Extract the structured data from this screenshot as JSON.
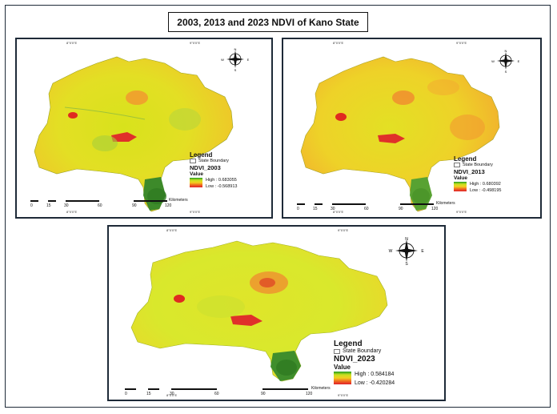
{
  "title": "2003, 2013 and 2023 NDVI of Kano State",
  "coord_top": "8°0'0\"E",
  "coord_top_right": "9°0'0\"E",
  "panels": [
    {
      "legend_title": "Legend",
      "boundary_label": "State Boundary",
      "layer_name": "NDVI_2003",
      "value_label": "Value",
      "high_label": "High : 0.683055",
      "low_label": "Low : -0.568913",
      "scale_unit": "Kilometers",
      "scale_ticks": [
        "0",
        "15",
        "30",
        "60",
        "90",
        "120"
      ]
    },
    {
      "legend_title": "Legend",
      "boundary_label": "State Boundary",
      "layer_name": "NDVI_2013",
      "value_label": "Value",
      "high_label": "High : 0.680392",
      "low_label": "Low : -0.498195",
      "scale_unit": "Kilometers",
      "scale_ticks": [
        "0",
        "15",
        "30",
        "60",
        "90",
        "120"
      ]
    },
    {
      "legend_title": "Legend",
      "boundary_label": "State Boundary",
      "layer_name": "NDVI_2023",
      "value_label": "Value",
      "high_label": "High : 0.584184",
      "low_label": "Low : -0.420284",
      "scale_unit": "Kilometers",
      "scale_ticks": [
        "0",
        "15",
        "30",
        "60",
        "90",
        "120"
      ]
    }
  ],
  "compass_letters": {
    "n": "N",
    "s": "S",
    "e": "E",
    "w": "W"
  },
  "colors": {
    "high": "#1f9b1f",
    "mid": "#d7e41e",
    "low": "#e0202a",
    "frame": "#1e2a38"
  }
}
